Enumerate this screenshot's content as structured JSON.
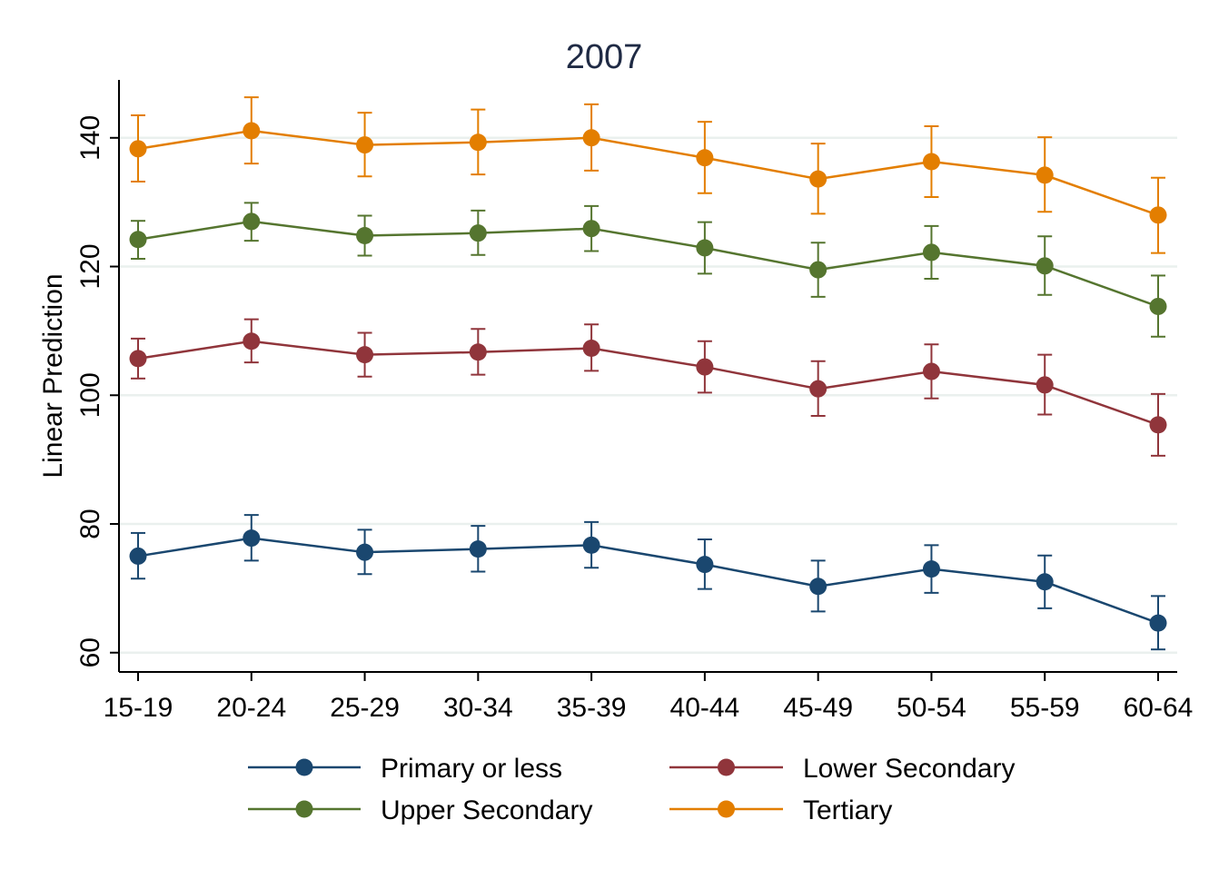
{
  "chart_data": {
    "type": "line",
    "title": "2007",
    "ylabel": "Linear Prediction",
    "xlabel": "",
    "categories": [
      "15-19",
      "20-24",
      "25-29",
      "30-34",
      "35-39",
      "40-44",
      "45-49",
      "50-54",
      "55-59",
      "60-64"
    ],
    "ylim": [
      57,
      149
    ],
    "yticks": [
      60,
      80,
      100,
      120,
      140
    ],
    "grid": true,
    "legend_position": "bottom",
    "series": [
      {
        "name": "Primary or less",
        "color": "#1a476f",
        "values": [
          75.0,
          77.8,
          75.6,
          76.1,
          76.7,
          73.7,
          70.3,
          73.0,
          71.0,
          64.6
        ],
        "lower": [
          71.5,
          74.3,
          72.2,
          72.6,
          73.2,
          69.9,
          66.4,
          69.3,
          66.9,
          60.5
        ],
        "upper": [
          78.6,
          81.4,
          79.1,
          79.7,
          80.3,
          77.6,
          74.3,
          76.7,
          75.1,
          68.8
        ]
      },
      {
        "name": "Lower Secondary",
        "color": "#90353b",
        "values": [
          105.7,
          108.4,
          106.3,
          106.7,
          107.3,
          104.4,
          101.0,
          103.7,
          101.6,
          95.4
        ],
        "lower": [
          102.6,
          105.1,
          102.9,
          103.2,
          103.8,
          100.4,
          96.8,
          99.5,
          97.0,
          90.6
        ],
        "upper": [
          108.8,
          111.8,
          109.7,
          110.3,
          111.0,
          108.4,
          105.3,
          107.9,
          106.3,
          100.2
        ]
      },
      {
        "name": "Upper Secondary",
        "color": "#55752f",
        "values": [
          124.2,
          127.0,
          124.8,
          125.2,
          125.9,
          122.9,
          119.5,
          122.2,
          120.1,
          113.8
        ],
        "lower": [
          121.2,
          124.0,
          121.7,
          121.8,
          122.4,
          118.9,
          115.3,
          118.1,
          115.6,
          109.1
        ],
        "upper": [
          127.1,
          129.9,
          127.9,
          128.7,
          129.4,
          126.9,
          123.7,
          126.3,
          124.7,
          118.6
        ]
      },
      {
        "name": "Tertiary",
        "color": "#e37e00",
        "values": [
          138.3,
          141.1,
          138.9,
          139.3,
          140.0,
          136.9,
          133.6,
          136.3,
          134.2,
          128.0
        ],
        "lower": [
          133.2,
          136.0,
          134.0,
          134.3,
          134.9,
          131.4,
          128.2,
          130.8,
          128.5,
          122.1
        ],
        "upper": [
          143.5,
          146.3,
          143.9,
          144.4,
          145.2,
          142.5,
          139.1,
          141.8,
          140.1,
          133.8
        ]
      }
    ]
  }
}
